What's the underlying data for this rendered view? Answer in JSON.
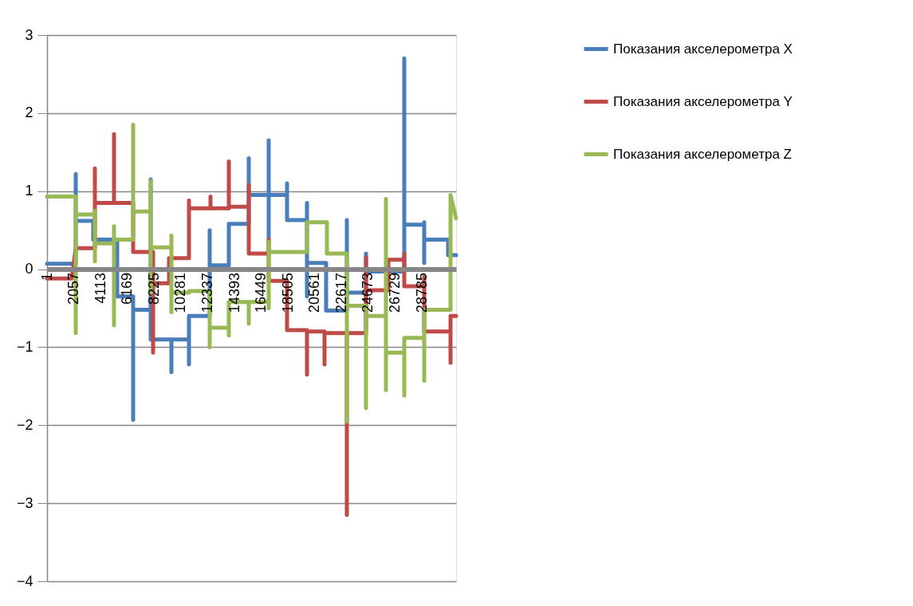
{
  "chart_data": {
    "type": "line",
    "xlim": [
      1,
      31416
    ],
    "xticks": [
      1,
      2057,
      4113,
      6169,
      8225,
      10281,
      12337,
      14393,
      16449,
      18505,
      20561,
      22617,
      24673,
      26729,
      28785
    ],
    "ylim": [
      -4,
      3
    ],
    "yticks": [
      -4,
      -3,
      -2,
      -1,
      0,
      1,
      2,
      3
    ],
    "grid": "y",
    "legend": "right",
    "marker": "none",
    "line_style": "solid",
    "series": [
      {
        "name": "Показания акселерометра X",
        "color": "#4a7ebb",
        "x": [
          1,
          1898,
          2205,
          2205,
          2205,
          3552,
          3552,
          5389,
          5389,
          6614,
          6614,
          6614,
          7961,
          7961,
          7961,
          9553,
          9553,
          9553,
          10901,
          10901,
          10901,
          12493,
          12493,
          12493,
          13963,
          13963,
          13963,
          15494,
          15494,
          15494,
          17025,
          17025,
          17025,
          17025,
          18433,
          18433,
          18433,
          19964,
          19964,
          19964,
          19964,
          21434,
          21434,
          23026,
          23026,
          23026,
          24496,
          24496,
          24496,
          24496,
          27436,
          27436,
          27436,
          28967,
          28967,
          28967,
          28967,
          30804,
          30804,
          31416
        ],
        "values": [
          0.07,
          0.07,
          0.07,
          1.22,
          0.62,
          0.62,
          0.38,
          0.38,
          -0.35,
          -0.35,
          -1.93,
          -0.52,
          -0.52,
          1.15,
          -0.9,
          -0.9,
          -1.32,
          -0.9,
          -0.9,
          -1.22,
          -0.6,
          -0.6,
          0.5,
          0.05,
          0.05,
          0.25,
          0.58,
          0.58,
          1.42,
          0.95,
          0.95,
          1.65,
          0.2,
          0.95,
          0.95,
          1.1,
          0.63,
          0.63,
          0.85,
          -0.35,
          0.08,
          0.08,
          -0.53,
          -0.53,
          0.63,
          -0.3,
          -0.3,
          0.2,
          -0.75,
          -0.03,
          -0.03,
          2.7,
          0.57,
          0.57,
          0.6,
          0.08,
          0.38,
          0.38,
          0.18,
          0.18
        ]
      },
      {
        "name": "Показания акселерометра Y",
        "color": "#be4b48",
        "x": [
          1,
          1898,
          2205,
          3675,
          3675,
          3675,
          5144,
          5144,
          5144,
          6614,
          6614,
          8145,
          8145,
          8145,
          9370,
          9370,
          10901,
          10901,
          10901,
          12554,
          12554,
          12554,
          13963,
          13963,
          13963,
          15494,
          15494,
          15494,
          17025,
          17025,
          17025,
          18433,
          18433,
          19964,
          19964,
          19964,
          21311,
          21311,
          21311,
          23026,
          23026,
          23026,
          24496,
          24496,
          24496,
          26211,
          26211,
          27436,
          27436,
          27436,
          28967,
          28967,
          28967,
          30988,
          30988,
          30988,
          31416
        ],
        "values": [
          -0.12,
          -0.12,
          0.27,
          0.27,
          1.29,
          0.85,
          0.85,
          1.73,
          0.85,
          0.85,
          0.22,
          0.22,
          -1.07,
          -0.18,
          -0.18,
          0.14,
          0.14,
          0.88,
          0.78,
          0.78,
          0.93,
          0.78,
          0.78,
          1.38,
          0.8,
          0.8,
          1.08,
          0.2,
          0.2,
          0.38,
          -0.15,
          -0.15,
          -0.78,
          -0.78,
          -1.35,
          -0.8,
          -0.8,
          -1.22,
          -0.82,
          -0.82,
          -3.15,
          -0.82,
          -0.82,
          0.15,
          -0.27,
          -0.27,
          0.12,
          0.12,
          0.2,
          -0.22,
          -0.22,
          -0.1,
          -0.8,
          -0.8,
          -1.2,
          -0.6,
          -0.6
        ]
      },
      {
        "name": "Показания акселерометра Z",
        "color": "#98b954",
        "x": [
          1,
          2205,
          2205,
          2205,
          3675,
          3675,
          3675,
          3675,
          5144,
          5144,
          5144,
          5144,
          6614,
          6614,
          6614,
          7961,
          7961,
          7961,
          7961,
          9553,
          9553,
          9553,
          9553,
          10901,
          10901,
          12493,
          12493,
          12493,
          13963,
          13963,
          13963,
          15494,
          15494,
          15494,
          17025,
          17025,
          17025,
          17025,
          19964,
          19964,
          21495,
          21495,
          23026,
          23026,
          23026,
          24496,
          24496,
          24496,
          26027,
          26027,
          26027,
          26027,
          27436,
          27436,
          27436,
          28967,
          28967,
          28967,
          30988,
          30988,
          31416
        ],
        "values": [
          0.93,
          0.93,
          -0.82,
          0.7,
          0.7,
          0.75,
          0.1,
          0.33,
          0.33,
          -0.72,
          0.55,
          0.38,
          0.38,
          1.85,
          0.74,
          0.74,
          1.13,
          -0.3,
          0.28,
          0.28,
          0.43,
          -0.55,
          -0.3,
          -0.3,
          -0.28,
          -0.28,
          -1.0,
          -0.75,
          -0.75,
          -0.85,
          -0.42,
          -0.42,
          -0.7,
          -0.42,
          -0.42,
          -0.5,
          0.35,
          0.22,
          0.22,
          0.6,
          0.6,
          0.2,
          0.2,
          -1.95,
          -0.47,
          -0.47,
          -1.78,
          -0.6,
          -0.6,
          0.9,
          -1.55,
          -1.07,
          -1.07,
          -1.62,
          -0.88,
          -0.88,
          -1.43,
          -0.52,
          -0.52,
          0.95,
          0.65
        ]
      }
    ]
  }
}
